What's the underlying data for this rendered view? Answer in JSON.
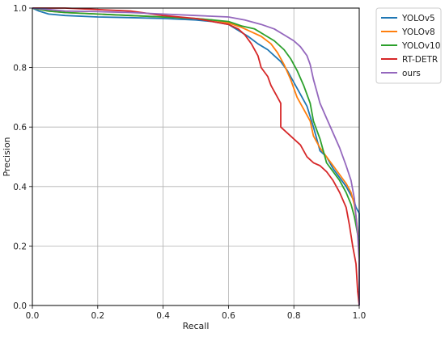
{
  "chart_data": {
    "type": "line",
    "title": "",
    "xlabel": "Recall",
    "ylabel": "Precision",
    "xlim": [
      0.0,
      1.0
    ],
    "ylim": [
      0.0,
      1.0
    ],
    "grid": true,
    "legend_position": "outside-top-right",
    "x_ticks": [
      "0.0",
      "0.2",
      "0.4",
      "0.6",
      "0.8",
      "1.0"
    ],
    "y_ticks": [
      "0.0",
      "0.2",
      "0.4",
      "0.6",
      "0.8",
      "1.0"
    ],
    "series": [
      {
        "name": "YOLOv5",
        "color": "#1f77b4",
        "points": [
          [
            0.0,
            1.0
          ],
          [
            0.02,
            0.99
          ],
          [
            0.05,
            0.98
          ],
          [
            0.1,
            0.975
          ],
          [
            0.2,
            0.97
          ],
          [
            0.3,
            0.968
          ],
          [
            0.4,
            0.965
          ],
          [
            0.5,
            0.96
          ],
          [
            0.55,
            0.955
          ],
          [
            0.6,
            0.945
          ],
          [
            0.63,
            0.925
          ],
          [
            0.66,
            0.905
          ],
          [
            0.69,
            0.88
          ],
          [
            0.72,
            0.86
          ],
          [
            0.74,
            0.84
          ],
          [
            0.76,
            0.82
          ],
          [
            0.78,
            0.79
          ],
          [
            0.8,
            0.75
          ],
          [
            0.82,
            0.71
          ],
          [
            0.84,
            0.67
          ],
          [
            0.86,
            0.6
          ],
          [
            0.87,
            0.56
          ],
          [
            0.88,
            0.52
          ],
          [
            0.9,
            0.5
          ],
          [
            0.92,
            0.46
          ],
          [
            0.94,
            0.43
          ],
          [
            0.96,
            0.4
          ],
          [
            0.975,
            0.37
          ],
          [
            0.985,
            0.35
          ],
          [
            0.99,
            0.33
          ],
          [
            0.995,
            0.32
          ],
          [
            1.0,
            0.31
          ],
          [
            1.0,
            0.0
          ]
        ]
      },
      {
        "name": "YOLOv8",
        "color": "#ff7f0e",
        "points": [
          [
            0.0,
            1.0
          ],
          [
            0.05,
            0.99
          ],
          [
            0.1,
            0.985
          ],
          [
            0.2,
            0.98
          ],
          [
            0.3,
            0.975
          ],
          [
            0.4,
            0.97
          ],
          [
            0.5,
            0.965
          ],
          [
            0.55,
            0.96
          ],
          [
            0.6,
            0.95
          ],
          [
            0.64,
            0.935
          ],
          [
            0.67,
            0.92
          ],
          [
            0.7,
            0.905
          ],
          [
            0.73,
            0.88
          ],
          [
            0.75,
            0.85
          ],
          [
            0.77,
            0.81
          ],
          [
            0.79,
            0.76
          ],
          [
            0.81,
            0.7
          ],
          [
            0.83,
            0.66
          ],
          [
            0.85,
            0.62
          ],
          [
            0.86,
            0.57
          ],
          [
            0.88,
            0.53
          ],
          [
            0.9,
            0.5
          ],
          [
            0.92,
            0.47
          ],
          [
            0.94,
            0.44
          ],
          [
            0.96,
            0.41
          ],
          [
            0.975,
            0.38
          ],
          [
            0.985,
            0.34
          ],
          [
            0.99,
            0.3
          ],
          [
            0.995,
            0.25
          ],
          [
            1.0,
            0.2
          ],
          [
            1.0,
            0.0
          ]
        ]
      },
      {
        "name": "YOLOv10",
        "color": "#2ca02c",
        "points": [
          [
            0.0,
            1.0
          ],
          [
            0.05,
            0.99
          ],
          [
            0.1,
            0.985
          ],
          [
            0.2,
            0.98
          ],
          [
            0.3,
            0.975
          ],
          [
            0.4,
            0.97
          ],
          [
            0.5,
            0.965
          ],
          [
            0.55,
            0.96
          ],
          [
            0.6,
            0.955
          ],
          [
            0.64,
            0.94
          ],
          [
            0.68,
            0.93
          ],
          [
            0.71,
            0.91
          ],
          [
            0.74,
            0.89
          ],
          [
            0.77,
            0.86
          ],
          [
            0.79,
            0.83
          ],
          [
            0.81,
            0.79
          ],
          [
            0.83,
            0.74
          ],
          [
            0.85,
            0.68
          ],
          [
            0.86,
            0.62
          ],
          [
            0.88,
            0.56
          ],
          [
            0.89,
            0.52
          ],
          [
            0.9,
            0.48
          ],
          [
            0.92,
            0.45
          ],
          [
            0.94,
            0.42
          ],
          [
            0.96,
            0.38
          ],
          [
            0.975,
            0.34
          ],
          [
            0.985,
            0.3
          ],
          [
            0.99,
            0.27
          ],
          [
            0.995,
            0.24
          ],
          [
            1.0,
            0.22
          ],
          [
            1.0,
            0.0
          ]
        ]
      },
      {
        "name": "RT-DETR",
        "color": "#d62728",
        "points": [
          [
            0.0,
            1.0
          ],
          [
            0.1,
            1.0
          ],
          [
            0.2,
            0.995
          ],
          [
            0.3,
            0.99
          ],
          [
            0.4,
            0.975
          ],
          [
            0.5,
            0.965
          ],
          [
            0.55,
            0.955
          ],
          [
            0.6,
            0.945
          ],
          [
            0.63,
            0.93
          ],
          [
            0.65,
            0.91
          ],
          [
            0.67,
            0.88
          ],
          [
            0.69,
            0.84
          ],
          [
            0.7,
            0.8
          ],
          [
            0.72,
            0.77
          ],
          [
            0.73,
            0.74
          ],
          [
            0.75,
            0.7
          ],
          [
            0.76,
            0.68
          ],
          [
            0.76,
            0.6
          ],
          [
            0.78,
            0.58
          ],
          [
            0.8,
            0.56
          ],
          [
            0.82,
            0.54
          ],
          [
            0.84,
            0.5
          ],
          [
            0.86,
            0.48
          ],
          [
            0.88,
            0.47
          ],
          [
            0.9,
            0.45
          ],
          [
            0.92,
            0.42
          ],
          [
            0.94,
            0.38
          ],
          [
            0.96,
            0.33
          ],
          [
            0.97,
            0.27
          ],
          [
            0.98,
            0.2
          ],
          [
            0.99,
            0.14
          ],
          [
            0.995,
            0.05
          ],
          [
            1.0,
            0.0
          ]
        ]
      },
      {
        "name": "ours",
        "color": "#9467bd",
        "points": [
          [
            0.0,
            1.0
          ],
          [
            0.05,
            0.995
          ],
          [
            0.1,
            0.99
          ],
          [
            0.2,
            0.988
          ],
          [
            0.3,
            0.985
          ],
          [
            0.4,
            0.98
          ],
          [
            0.5,
            0.975
          ],
          [
            0.6,
            0.97
          ],
          [
            0.65,
            0.96
          ],
          [
            0.7,
            0.945
          ],
          [
            0.74,
            0.93
          ],
          [
            0.77,
            0.91
          ],
          [
            0.8,
            0.89
          ],
          [
            0.82,
            0.87
          ],
          [
            0.84,
            0.84
          ],
          [
            0.85,
            0.81
          ],
          [
            0.86,
            0.76
          ],
          [
            0.87,
            0.72
          ],
          [
            0.88,
            0.68
          ],
          [
            0.9,
            0.63
          ],
          [
            0.92,
            0.58
          ],
          [
            0.94,
            0.53
          ],
          [
            0.96,
            0.47
          ],
          [
            0.975,
            0.42
          ],
          [
            0.985,
            0.36
          ],
          [
            0.99,
            0.3
          ],
          [
            0.995,
            0.24
          ],
          [
            1.0,
            0.15
          ],
          [
            1.0,
            0.0
          ]
        ]
      }
    ]
  }
}
